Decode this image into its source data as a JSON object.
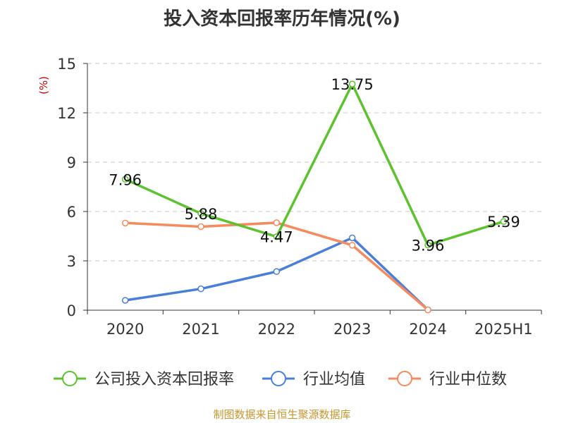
{
  "chart_data": {
    "type": "line",
    "title": "投入资本回报率历年情况(%)",
    "unit_label": "(%)",
    "source": "制图数据来自恒生聚源数据库",
    "categories": [
      "2020",
      "2021",
      "2022",
      "2023",
      "2024",
      "2025H1"
    ],
    "ylim": [
      0,
      15
    ],
    "yticks": [
      "0",
      "3",
      "6",
      "9",
      "12",
      "15"
    ],
    "grid": true,
    "legend_position": "bottom",
    "series": [
      {
        "name": "公司投入资本回报率",
        "color": "#5cc22e",
        "values": [
          7.96,
          5.88,
          4.47,
          13.75,
          3.96,
          5.39
        ],
        "labels": [
          "7.96",
          "5.88",
          "4.47",
          "13.75",
          "3.96",
          "5.39"
        ]
      },
      {
        "name": "行业均值",
        "color": "#4a7fd8",
        "values": [
          0.6,
          1.3,
          2.35,
          4.4,
          0.02,
          null
        ]
      },
      {
        "name": "行业中位数",
        "color": "#f58a5c",
        "values": [
          5.3,
          5.08,
          5.32,
          3.95,
          0.02,
          null
        ]
      }
    ]
  }
}
